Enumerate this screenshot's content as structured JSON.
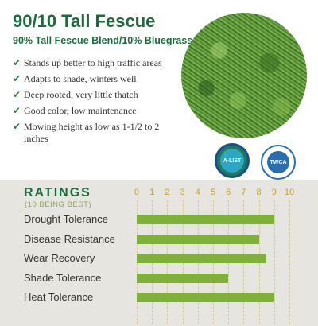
{
  "product": {
    "title": "90/10 Tall Fescue",
    "subtitle": "90% Tall Fescue Blend/10% Bluegrass"
  },
  "features": [
    "Stands up better to high traffic areas",
    "Adapts to shade, winters well",
    "Deep rooted, very little thatch",
    "Good color, low maintenance",
    "Mowing height as low as 1-1/2 to 2 inches"
  ],
  "check_icon": "checkmark-icon",
  "badges": {
    "alist": "A-LIST",
    "twca": "TWCA"
  },
  "ratings": {
    "title": "RATINGS",
    "subtitle": "(10 BEING BEST)",
    "scale": [
      "0",
      "1",
      "2",
      "3",
      "4",
      "5",
      "6",
      "7",
      "8",
      "9",
      "10"
    ],
    "items": [
      {
        "label": "Drought Tolerance",
        "value": 9
      },
      {
        "label": "Disease Resistance",
        "value": 8
      },
      {
        "label": "Wear Recovery",
        "value": 8.5
      },
      {
        "label": "Shade Tolerance",
        "value": 6
      },
      {
        "label": "Heat Tolerance",
        "value": 9
      }
    ]
  },
  "colors": {
    "brand_green": "#1c6b3c",
    "bar_green": "#7fb03a",
    "tick_gold": "#c9a024",
    "panel_bg": "#e6e5e0"
  }
}
